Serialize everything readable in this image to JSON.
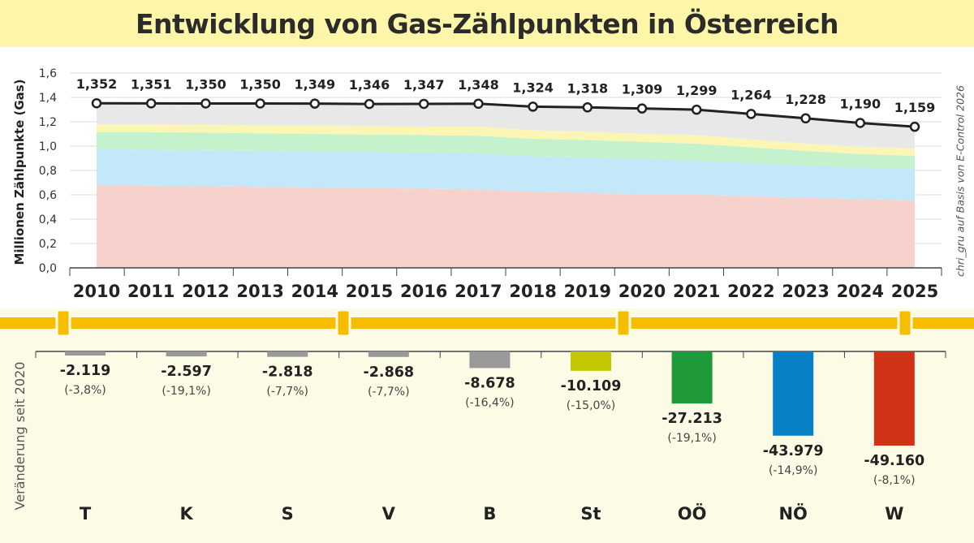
{
  "title": "Entwicklung von Gas-Zählpunkten in Österreich",
  "credit": "chri_gru auf Basis von E-Control 2026",
  "colors": {
    "title_bg": "#fdf6a8",
    "page_bg": "#fcfce6",
    "divider": "#f7bd00",
    "line": "#222222",
    "area_layers": [
      "#f7d2cd",
      "#c4e8f9",
      "#c4f2cc",
      "#fbf6b4",
      "#e8e8e8"
    ]
  },
  "chart_data": [
    {
      "type": "line",
      "ylabel": "Millionen Zählpunkte (Gas)",
      "xlabel": "",
      "ylim": [
        0,
        1.6
      ],
      "yticks": [
        "0,0",
        "0,2",
        "0,4",
        "0,6",
        "0,8",
        "1,0",
        "1,2",
        "1,4",
        "1,6"
      ],
      "ytick_values": [
        0,
        0.2,
        0.4,
        0.6,
        0.8,
        1.0,
        1.2,
        1.4,
        1.6
      ],
      "grid": true,
      "x": [
        "2010",
        "2011",
        "2012",
        "2013",
        "2014",
        "2015",
        "2016",
        "2017",
        "2018",
        "2019",
        "2020",
        "2021",
        "2022",
        "2023",
        "2024",
        "2025"
      ],
      "series": [
        {
          "name": "",
          "values": [
            1.352,
            1.351,
            1.35,
            1.35,
            1.349,
            1.346,
            1.347,
            1.348,
            1.324,
            1.318,
            1.309,
            1.299,
            1.264,
            1.228,
            1.19,
            1.159
          ],
          "labels": [
            "1,352",
            "1,351",
            "1,350",
            "1,350",
            "1,349",
            "1,346",
            "1,347",
            "1,348",
            "1,324",
            "1,318",
            "1,309",
            "1,299",
            "1,264",
            "1,228",
            "1,190",
            "1,159"
          ]
        }
      ],
      "stacked_area_cumulative": [
        [
          0.68,
          0.675,
          0.67,
          0.665,
          0.66,
          0.655,
          0.65,
          0.645,
          0.625,
          0.615,
          0.605,
          0.6,
          0.59,
          0.575,
          0.565,
          0.555
        ],
        [
          0.975,
          0.97,
          0.965,
          0.96,
          0.955,
          0.95,
          0.945,
          0.94,
          0.915,
          0.905,
          0.895,
          0.88,
          0.86,
          0.84,
          0.825,
          0.81
        ],
        [
          1.115,
          1.115,
          1.11,
          1.105,
          1.1,
          1.095,
          1.09,
          1.085,
          1.06,
          1.05,
          1.035,
          1.02,
          0.99,
          0.96,
          0.935,
          0.92
        ],
        [
          1.18,
          1.178,
          1.175,
          1.172,
          1.17,
          1.165,
          1.162,
          1.16,
          1.13,
          1.12,
          1.1,
          1.09,
          1.055,
          1.02,
          0.995,
          0.98
        ]
      ]
    },
    {
      "type": "bar",
      "ylabel": "Veränderung seit 2020",
      "categories": [
        "T",
        "K",
        "S",
        "V",
        "B",
        "St",
        "OÖ",
        "NÖ",
        "W"
      ],
      "values": [
        -2119,
        -2597,
        -2818,
        -2868,
        -8678,
        -10109,
        -27213,
        -43979,
        -49160
      ],
      "value_labels": [
        "-2.119",
        "-2.597",
        "-2.818",
        "-2.868",
        "-8.678",
        "-10.109",
        "-27.213",
        "-43.979",
        "-49.160"
      ],
      "percent_labels": [
        "(-3,8%)",
        "(-19,1%)",
        "(-7,7%)",
        "(-7,7%)",
        "(-16,4%)",
        "(-15,0%)",
        "(-19,1%)",
        "(-14,9%)",
        "(-8,1%)"
      ],
      "colors": [
        "#999999",
        "#999999",
        "#999999",
        "#999999",
        "#999999",
        "#c2c700",
        "#1f9a3a",
        "#0880c6",
        "#d03318"
      ]
    }
  ]
}
